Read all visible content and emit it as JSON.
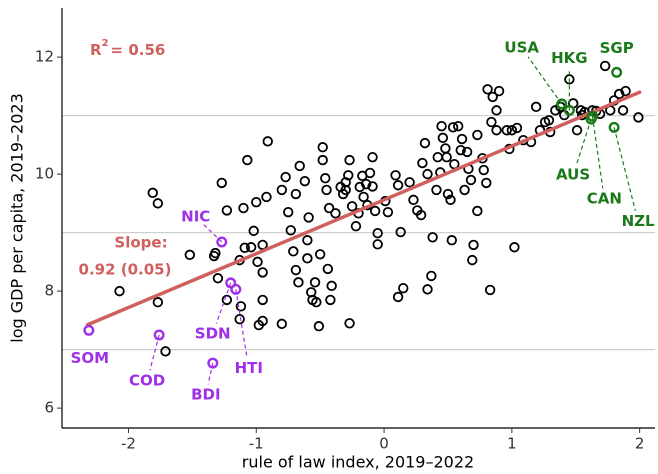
{
  "chart_data": {
    "type": "scatter",
    "x_label": "rule of law index, 2019–2022",
    "y_label": "log GDP per capita, 2019–2023",
    "xlim": [
      -2.52,
      2.12
    ],
    "ylim": [
      5.66,
      12.84
    ],
    "xticks": [
      -2,
      -1,
      0,
      1,
      2
    ],
    "yticks": [
      6,
      8,
      10,
      12
    ],
    "minor_grid": [
      7,
      9,
      11
    ],
    "color": "#000000",
    "x": [
      -2.07,
      -1.81,
      -1.77,
      -1.77,
      -1.71,
      -1.52,
      -1.32,
      -1.33,
      -1.3,
      -1.27,
      -1.23,
      -1.23,
      -1.13,
      -1.1,
      -1.07,
      -1.09,
      -1.04,
      -1.02,
      -1.0,
      -0.99,
      -0.95,
      -0.92,
      -0.95,
      -0.95,
      -0.98,
      -0.95,
      -1.13,
      -1.12,
      -0.8,
      -0.91,
      -0.8,
      -0.77,
      -0.75,
      -0.73,
      -0.71,
      -0.69,
      -0.67,
      -0.66,
      -0.69,
      -0.62,
      -0.6,
      -0.6,
      -0.59,
      -0.57,
      -0.56,
      -0.54,
      -0.53,
      -0.51,
      -0.5,
      -0.48,
      -0.48,
      -0.46,
      -0.45,
      -0.43,
      -0.44,
      -0.42,
      -0.41,
      -0.38,
      -0.34,
      -0.32,
      -0.3,
      -0.3,
      -0.28,
      -0.27,
      -0.25,
      -0.22,
      -0.2,
      -0.19,
      -0.17,
      -0.16,
      -0.14,
      -0.13,
      -0.11,
      -0.09,
      -0.09,
      -0.07,
      -0.05,
      -0.05,
      -0.27,
      0.01,
      0.03,
      0.09,
      0.11,
      0.13,
      0.2,
      0.23,
      0.26,
      0.29,
      0.3,
      0.32,
      0.34,
      0.11,
      0.15,
      0.34,
      0.37,
      0.38,
      0.41,
      0.42,
      0.44,
      0.45,
      0.46,
      0.48,
      0.49,
      0.5,
      0.52,
      0.53,
      0.54,
      0.55,
      0.58,
      0.6,
      0.61,
      0.63,
      0.65,
      0.66,
      0.68,
      0.69,
      0.7,
      0.73,
      0.73,
      0.77,
      0.78,
      0.8,
      0.81,
      0.83,
      0.84,
      0.85,
      0.88,
      0.88,
      0.9,
      0.96,
      0.98,
      1.0,
      1.02,
      1.04,
      1.09,
      1.15,
      1.19,
      1.22,
      1.26,
      1.29,
      1.3,
      1.34,
      1.38,
      1.41,
      1.45,
      1.48,
      1.51,
      1.55,
      1.54,
      1.57,
      1.63,
      1.66,
      1.69,
      1.73,
      1.77,
      1.8,
      1.84,
      1.87,
      1.89,
      1.99
    ],
    "values": [
      8.0,
      9.68,
      9.5,
      7.81,
      6.97,
      8.62,
      8.65,
      8.6,
      8.22,
      9.85,
      9.38,
      7.85,
      8.53,
      9.42,
      10.24,
      8.74,
      8.75,
      9.03,
      9.52,
      8.5,
      8.79,
      9.61,
      8.32,
      7.85,
      7.42,
      7.49,
      7.52,
      7.74,
      7.44,
      10.56,
      9.73,
      9.95,
      9.35,
      9.04,
      8.68,
      8.36,
      8.15,
      10.14,
      9.66,
      9.88,
      8.87,
      8.56,
      9.26,
      7.98,
      7.85,
      8.15,
      7.81,
      7.4,
      8.63,
      10.46,
      10.24,
      9.93,
      9.73,
      9.42,
      8.38,
      7.85,
      8.09,
      9.33,
      9.78,
      9.66,
      9.73,
      9.86,
      9.98,
      10.24,
      9.45,
      9.11,
      9.33,
      9.78,
      9.97,
      9.61,
      9.83,
      9.47,
      10.02,
      10.29,
      9.79,
      9.37,
      8.8,
      8.99,
      7.45,
      9.54,
      9.35,
      9.98,
      9.81,
      9.01,
      9.86,
      9.56,
      9.38,
      9.3,
      10.19,
      10.53,
      10.0,
      7.9,
      8.05,
      8.03,
      8.26,
      8.92,
      9.73,
      10.29,
      10.03,
      10.82,
      10.62,
      10.44,
      10.29,
      9.66,
      9.56,
      8.87,
      10.8,
      10.17,
      10.82,
      10.41,
      10.6,
      9.73,
      10.38,
      10.09,
      9.9,
      8.53,
      8.79,
      9.37,
      10.67,
      10.27,
      10.07,
      9.85,
      11.45,
      8.02,
      10.89,
      11.32,
      11.09,
      10.75,
      11.42,
      10.75,
      10.43,
      10.75,
      8.75,
      10.79,
      10.58,
      10.55,
      11.15,
      10.75,
      10.89,
      10.92,
      10.72,
      11.09,
      11.15,
      11.01,
      11.62,
      11.21,
      10.75,
      11.01,
      11.09,
      11.06,
      11.09,
      11.08,
      11.03,
      11.85,
      11.09,
      11.26,
      11.37,
      11.09,
      11.42,
      10.97
    ],
    "fit": {
      "slope": 0.92,
      "intercept": 9.56,
      "x": [
        -2.32,
        2.0
      ],
      "color": "#d0605e"
    },
    "r2_label": "R",
    "r2_sup": "2",
    "r2_value": "= 0.56",
    "slope_label": "Slope:",
    "slope_value": "0.92 (0.05)",
    "highlights": [
      {
        "label": "USA",
        "x": 1.39,
        "value": 11.2,
        "color": "#1a7a1a"
      },
      {
        "label": "HKG",
        "x": 1.45,
        "value": 11.09,
        "color": "#1a7a1a"
      },
      {
        "label": "SGP",
        "x": 1.82,
        "value": 11.74,
        "color": "#1a7a1a"
      },
      {
        "label": "AUS",
        "x": 1.62,
        "value": 10.94,
        "color": "#1a7a1a"
      },
      {
        "label": "CAN",
        "x": 1.63,
        "value": 10.99,
        "color": "#1a7a1a"
      },
      {
        "label": "NZL",
        "x": 1.8,
        "value": 10.8,
        "color": "#1a7a1a"
      },
      {
        "label": "NIC",
        "x": -1.27,
        "value": 8.84,
        "color": "#a030e8"
      },
      {
        "label": "SOM",
        "x": -2.31,
        "value": 7.33,
        "color": "#a030e8"
      },
      {
        "label": "COD",
        "x": -1.76,
        "value": 7.25,
        "color": "#a030e8"
      },
      {
        "label": "SDN",
        "x": -1.2,
        "value": 8.14,
        "color": "#a030e8"
      },
      {
        "label": "HTI",
        "x": -1.16,
        "value": 8.03,
        "color": "#a030e8"
      },
      {
        "label": "BDI",
        "x": -1.34,
        "value": 6.77,
        "color": "#a030e8"
      }
    ]
  }
}
